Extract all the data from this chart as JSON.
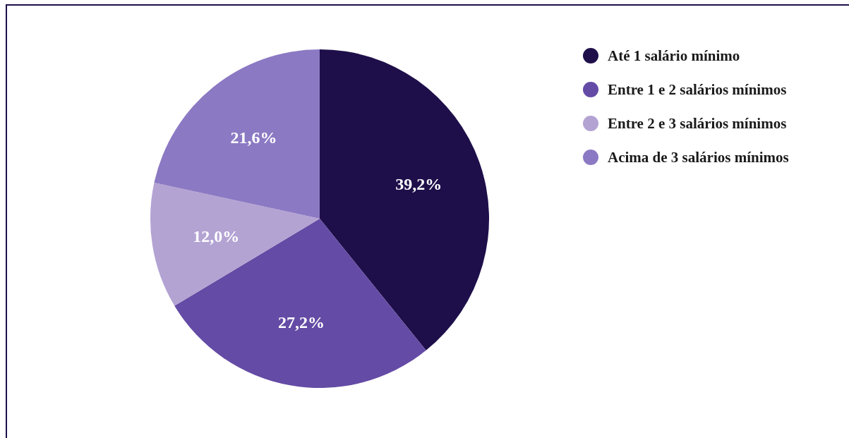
{
  "chart_data": {
    "type": "pie",
    "categories": [
      "Até 1 salário mínimo",
      "Entre 1 e 2 salários mínimos",
      "Entre 2 e 3 salários mínimos",
      "Acima de 3 salários mínimos"
    ],
    "values": [
      39.2,
      27.2,
      12.0,
      21.6
    ],
    "colors": [
      "#1e0f4a",
      "#644ba5",
      "#b3a3d3",
      "#8c79c3"
    ],
    "value_labels": [
      "39,2%",
      "27,2%",
      "12,0%",
      "21,6%"
    ],
    "legend": "top right"
  }
}
